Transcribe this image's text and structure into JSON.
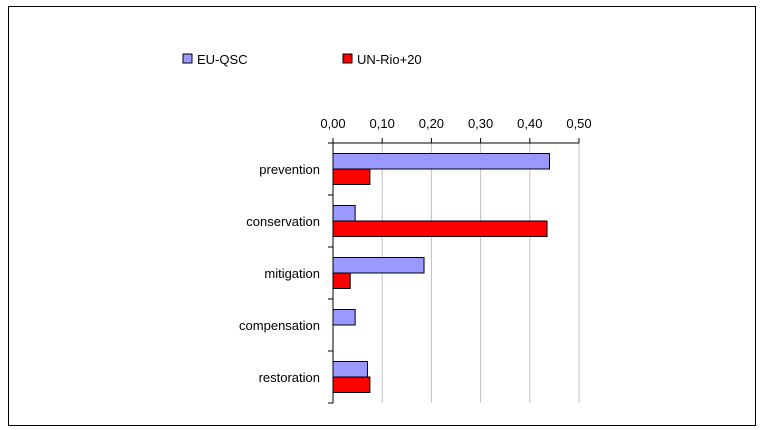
{
  "chart_data": {
    "type": "bar",
    "orientation": "horizontal",
    "categories": [
      "prevention",
      "conservation",
      "mitigation",
      "compensation",
      "restoration"
    ],
    "series": [
      {
        "name": "EU-QSC",
        "values": [
          0.44,
          0.045,
          0.185,
          0.045,
          0.07
        ]
      },
      {
        "name": "UN-Rio+20",
        "values": [
          0.075,
          0.435,
          0.035,
          0.0,
          0.075
        ]
      }
    ],
    "xlim": [
      0,
      0.5
    ],
    "x_ticks": [
      "0,00",
      "0,10",
      "0,20",
      "0,30",
      "0,40",
      "0,50"
    ],
    "x_tick_values": [
      0,
      0.1,
      0.2,
      0.3,
      0.4,
      0.5
    ],
    "x_axis_position": "top",
    "grid": "vertical",
    "legend": "top-left",
    "colors": {
      "EU-QSC": "#9999ff",
      "UN-Rio+20": "#ff0000",
      "grid": "#c0c0c0"
    }
  }
}
